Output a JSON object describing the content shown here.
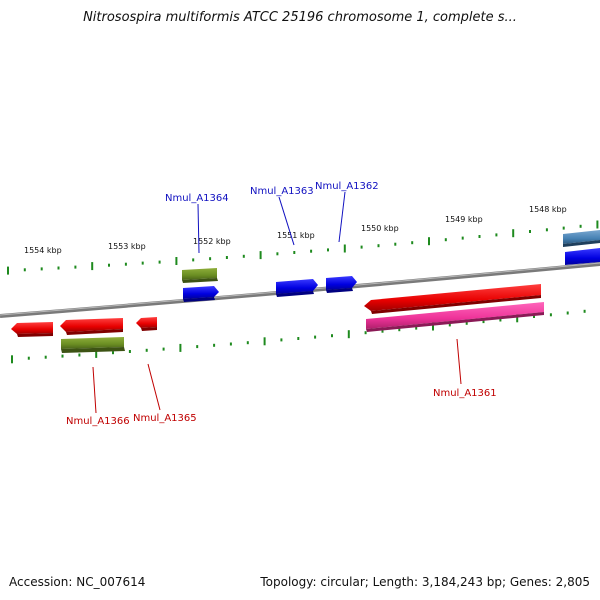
{
  "title": "Nitrosospira multiformis ATCC 25196 chromosome 1, complete s...",
  "footer": {
    "accession": "Accession: NC_007614",
    "summary": "Topology: circular; Length: 3,184,243 bp; Genes: 2,805"
  },
  "scale_labels": [
    "1554 kbp",
    "1553 kbp",
    "1552 kbp",
    "1551 kbp",
    "1550 kbp",
    "1549 kbp",
    "1548 kbp"
  ],
  "gene_labels": {
    "Nmul_A1364": "Nmul_A1364",
    "Nmul_A1363": "Nmul_A1363",
    "Nmul_A1362": "Nmul_A1362",
    "Nmul_A1361": "Nmul_A1361",
    "Nmul_A1366": "Nmul_A1366",
    "Nmul_A1365": "Nmul_A1365"
  },
  "colors": {
    "forward_cds": "#0000ee",
    "reverse_cds": "#ee0000",
    "gene": "#6b8e23",
    "pseudo": "#ee3399",
    "other": "#4682b4",
    "tick": "#1e8a1e",
    "backbone": "#888888",
    "forward_label": "#1010c0",
    "reverse_label": "#c00000"
  }
}
